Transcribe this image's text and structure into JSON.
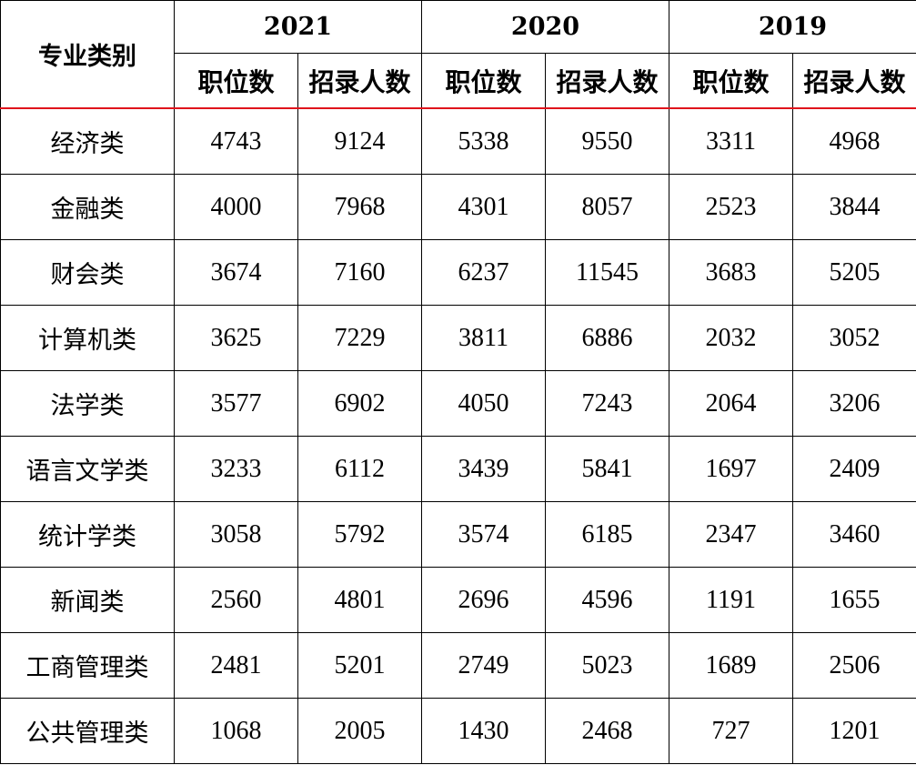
{
  "header": {
    "category_label": "专业类别",
    "years": [
      "2021",
      "2020",
      "2019"
    ],
    "sub_labels": [
      "职位数",
      "招录人数"
    ]
  },
  "accent_color": "#e0141c",
  "rows": [
    {
      "category": "经济类",
      "values": [
        "4743",
        "9124",
        "5338",
        "9550",
        "3311",
        "4968"
      ]
    },
    {
      "category": "金融类",
      "values": [
        "4000",
        "7968",
        "4301",
        "8057",
        "2523",
        "3844"
      ]
    },
    {
      "category": "财会类",
      "values": [
        "3674",
        "7160",
        "6237",
        "11545",
        "3683",
        "5205"
      ]
    },
    {
      "category": "计算机类",
      "values": [
        "3625",
        "7229",
        "3811",
        "6886",
        "2032",
        "3052"
      ]
    },
    {
      "category": "法学类",
      "values": [
        "3577",
        "6902",
        "4050",
        "7243",
        "2064",
        "3206"
      ]
    },
    {
      "category": "语言文学类",
      "values": [
        "3233",
        "6112",
        "3439",
        "5841",
        "1697",
        "2409"
      ]
    },
    {
      "category": "统计学类",
      "values": [
        "3058",
        "5792",
        "3574",
        "6185",
        "2347",
        "3460"
      ]
    },
    {
      "category": "新闻类",
      "values": [
        "2560",
        "4801",
        "2696",
        "4596",
        "1191",
        "1655"
      ]
    },
    {
      "category": "工商管理类",
      "values": [
        "2481",
        "5201",
        "2749",
        "5023",
        "1689",
        "2506"
      ]
    },
    {
      "category": "公共管理类",
      "values": [
        "1068",
        "2005",
        "1430",
        "2468",
        "727",
        "1201"
      ]
    }
  ]
}
